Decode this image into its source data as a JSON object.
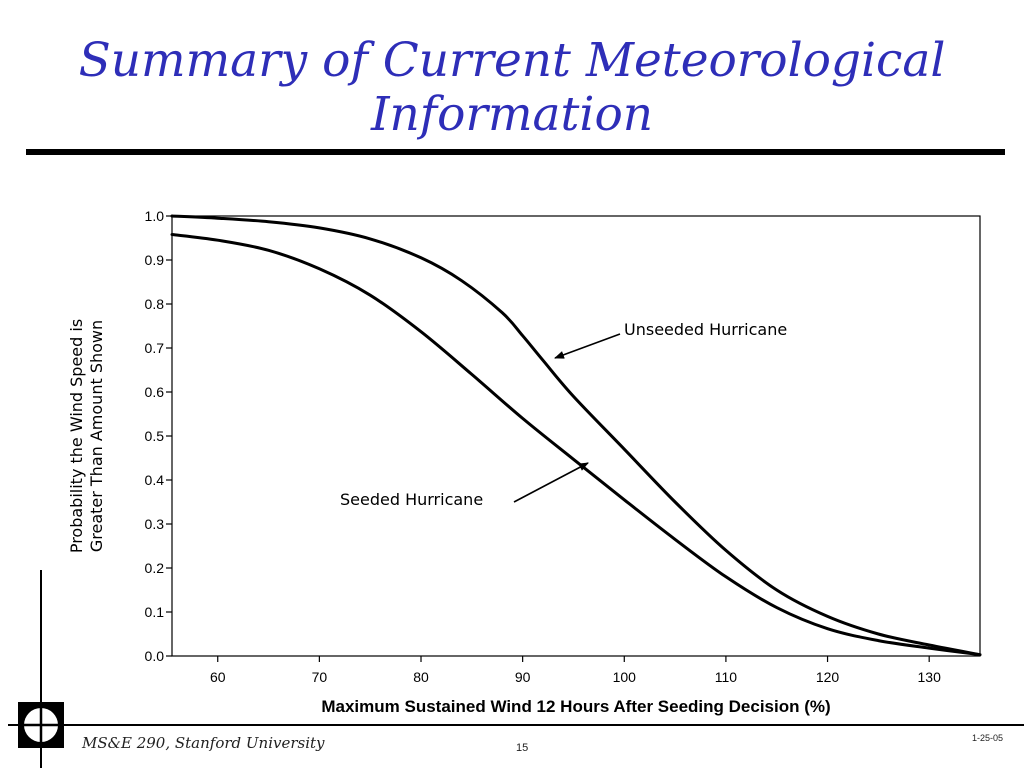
{
  "slide": {
    "title_line1": "Summary of Current Meteorological",
    "title_line2": "Information",
    "footer_left": "MS&E 290, Stanford University",
    "page_number": "15",
    "date": "1-25-05",
    "title_color": "#2e2eb8"
  },
  "chart_data": {
    "type": "line",
    "title": "",
    "xlabel": "Maximum Sustained Wind 12 Hours After Seeding Decision (%)",
    "ylabel_line1": "Probability the Wind Speed is",
    "ylabel_line2": "Greater Than Amount Shown",
    "xlim": [
      55.5,
      135
    ],
    "ylim": [
      0,
      1
    ],
    "x_ticks": [
      60,
      70,
      80,
      90,
      100,
      110,
      120,
      130
    ],
    "y_ticks": [
      0.0,
      0.1,
      0.2,
      0.3,
      0.4,
      0.5,
      0.6,
      0.7,
      0.8,
      0.9,
      1.0
    ],
    "y_tick_labels": [
      "0.0",
      "0.1",
      "0.2",
      "0.3",
      "0.4",
      "0.5",
      "0.6",
      "0.7",
      "0.8",
      "0.9",
      "1.0"
    ],
    "grid": false,
    "series": [
      {
        "name": "Unseeded Hurricane",
        "x": [
          55.5,
          60,
          65,
          70,
          75,
          80,
          84,
          88,
          90,
          92,
          95,
          100,
          105,
          110,
          115,
          120,
          125,
          130,
          135
        ],
        "y": [
          1.0,
          0.995,
          0.987,
          0.973,
          0.948,
          0.905,
          0.853,
          0.78,
          0.728,
          0.672,
          0.59,
          0.47,
          0.35,
          0.24,
          0.15,
          0.09,
          0.05,
          0.025,
          0.003
        ]
      },
      {
        "name": "Seeded Hurricane",
        "x": [
          55.5,
          60,
          65,
          70,
          75,
          80,
          85,
          90,
          95,
          100,
          105,
          110,
          115,
          120,
          125,
          130,
          135
        ],
        "y": [
          0.958,
          0.945,
          0.922,
          0.88,
          0.82,
          0.737,
          0.64,
          0.54,
          0.447,
          0.355,
          0.265,
          0.18,
          0.11,
          0.062,
          0.035,
          0.018,
          0.003
        ]
      }
    ],
    "annotations": [
      {
        "text": "Unseeded Hurricane",
        "series": "Unseeded Hurricane"
      },
      {
        "text": "Seeded Hurricane",
        "series": "Seeded Hurricane"
      }
    ]
  }
}
